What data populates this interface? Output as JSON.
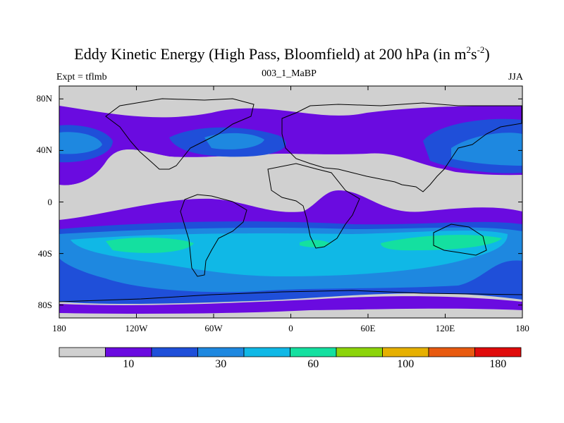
{
  "title": {
    "main": "Eddy Kinetic Energy (High Pass, Bloomfield) at 200 hPa (in m",
    "sup1": "2",
    "mid": "s",
    "sup2": "-2",
    "end": ")"
  },
  "left_string": "Expt = tflmb",
  "center_string": "003_1_MaBP",
  "right_string": "JJA",
  "map": {
    "y_ticks": [
      {
        "label": "80N",
        "lat": 80
      },
      {
        "label": "40N",
        "lat": 40
      },
      {
        "label": "0",
        "lat": 0
      },
      {
        "label": "40S",
        "lat": -40
      },
      {
        "label": "80S",
        "lat": -80
      }
    ],
    "x_ticks": [
      {
        "label": "180",
        "lon": -180
      },
      {
        "label": "120W",
        "lon": -120
      },
      {
        "label": "60W",
        "lon": -60
      },
      {
        "label": "0",
        "lon": 0
      },
      {
        "label": "60E",
        "lon": 60
      },
      {
        "label": "120E",
        "lon": 120
      },
      {
        "label": "180",
        "lon": 180
      }
    ]
  },
  "colorbar": {
    "colors": [
      "#d0d0d0",
      "#6a0be0",
      "#1f4fd9",
      "#1e88e0",
      "#10b8e6",
      "#14e0a0",
      "#8cd40a",
      "#e6b000",
      "#e85a10",
      "#e00b0b"
    ],
    "labels": [
      {
        "text": "10",
        "boundary": 2
      },
      {
        "text": "30",
        "boundary": 4
      },
      {
        "text": "60",
        "boundary": 6
      },
      {
        "text": "100",
        "boundary": 8
      },
      {
        "text": "180",
        "boundary": 10
      }
    ]
  }
}
